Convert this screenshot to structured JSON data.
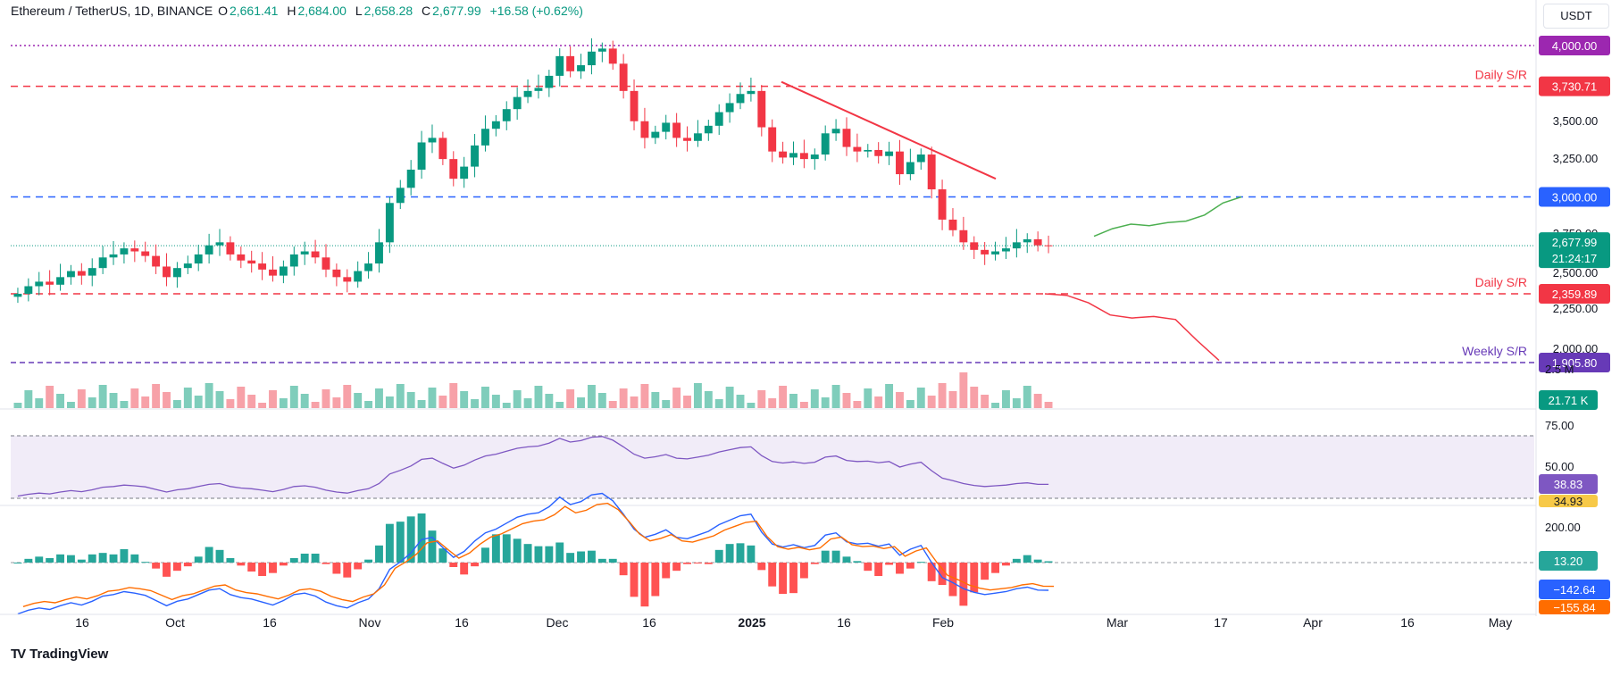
{
  "header": {
    "pair": "Ethereum / TetherUS, 1D, BINANCE",
    "open_label": "O",
    "open": "2,661.41",
    "high_label": "H",
    "high": "2,684.00",
    "low_label": "L",
    "low": "2,658.28",
    "close_label": "C",
    "close": "2,677.99",
    "change": "+16.58 (+0.62%)"
  },
  "currency": "USDT",
  "footer": {
    "brand": "TradingView",
    "logo": "TV"
  },
  "chart_data": {
    "type": "candlestick",
    "price_axis_ticks": [
      "4,000.00",
      "3,500.00",
      "3,250.00",
      "3,000.00",
      "2,750.00",
      "2,500.00",
      "2,250.00",
      "2,000.00"
    ],
    "time_axis_ticks": [
      "16",
      "Oct",
      "16",
      "Nov",
      "16",
      "Dec",
      "16",
      "2025",
      "16",
      "Feb",
      "Mar",
      "17",
      "Apr",
      "16",
      "May"
    ],
    "ylim": [
      1905,
      4060
    ],
    "levels": [
      {
        "name": "level-4000",
        "value": 4000.0,
        "label": "4,000.00",
        "color": "#9c27b0"
      },
      {
        "name": "daily-sr-upper",
        "value": 3730.71,
        "label": "3,730.71",
        "text": "Daily S/R",
        "color": "#f23645"
      },
      {
        "name": "level-3000",
        "value": 3000.0,
        "label": "3,000.00",
        "color": "#2962ff"
      },
      {
        "name": "daily-sr-lower",
        "value": 2359.89,
        "label": "2,359.89",
        "text": "Daily S/R",
        "color": "#f23645"
      },
      {
        "name": "weekly-sr",
        "value": 1905.8,
        "label": "1,905.80",
        "text": "Weekly S/R",
        "color": "#673ab7"
      }
    ],
    "last_price": {
      "value": 2677.99,
      "label": "2,677.99",
      "countdown": "21:24:17"
    },
    "volume": {
      "axis_label": "2.5 M",
      "current": "21.71 K"
    },
    "rsi": {
      "ticks": [
        "75.00",
        "50.00"
      ],
      "value": "38.83",
      "ma_value": "34.93",
      "upper": 70,
      "lower": 30
    },
    "macd": {
      "ticks": [
        "200.00"
      ],
      "histogram": "13.20",
      "macd": "−142.64",
      "signal": "−155.84"
    },
    "close_series": [
      2360,
      2410,
      2440,
      2420,
      2470,
      2510,
      2480,
      2530,
      2600,
      2620,
      2660,
      2640,
      2610,
      2540,
      2470,
      2530,
      2560,
      2620,
      2680,
      2700,
      2620,
      2580,
      2560,
      2520,
      2480,
      2540,
      2620,
      2640,
      2600,
      2520,
      2470,
      2440,
      2510,
      2560,
      2700,
      2960,
      3060,
      3180,
      3360,
      3390,
      3250,
      3120,
      3200,
      3340,
      3450,
      3500,
      3580,
      3660,
      3700,
      3720,
      3800,
      3930,
      3830,
      3870,
      3960,
      3980,
      3880,
      3700,
      3500,
      3390,
      3430,
      3490,
      3390,
      3370,
      3420,
      3470,
      3560,
      3620,
      3680,
      3700,
      3460,
      3300,
      3260,
      3290,
      3250,
      3280,
      3420,
      3450,
      3330,
      3300,
      3310,
      3270,
      3300,
      3150,
      3230,
      3280,
      3050,
      2850,
      2780,
      2700,
      2650,
      2620,
      2640,
      2660,
      2700,
      2720,
      2680,
      2678
    ],
    "projection_up": [
      2740,
      2790,
      2820,
      2810,
      2830,
      2840,
      2880,
      2960,
      3000
    ],
    "projection_down": [
      2360,
      2350,
      2300,
      2220,
      2200,
      2210,
      2190,
      2050,
      1920
    ]
  }
}
